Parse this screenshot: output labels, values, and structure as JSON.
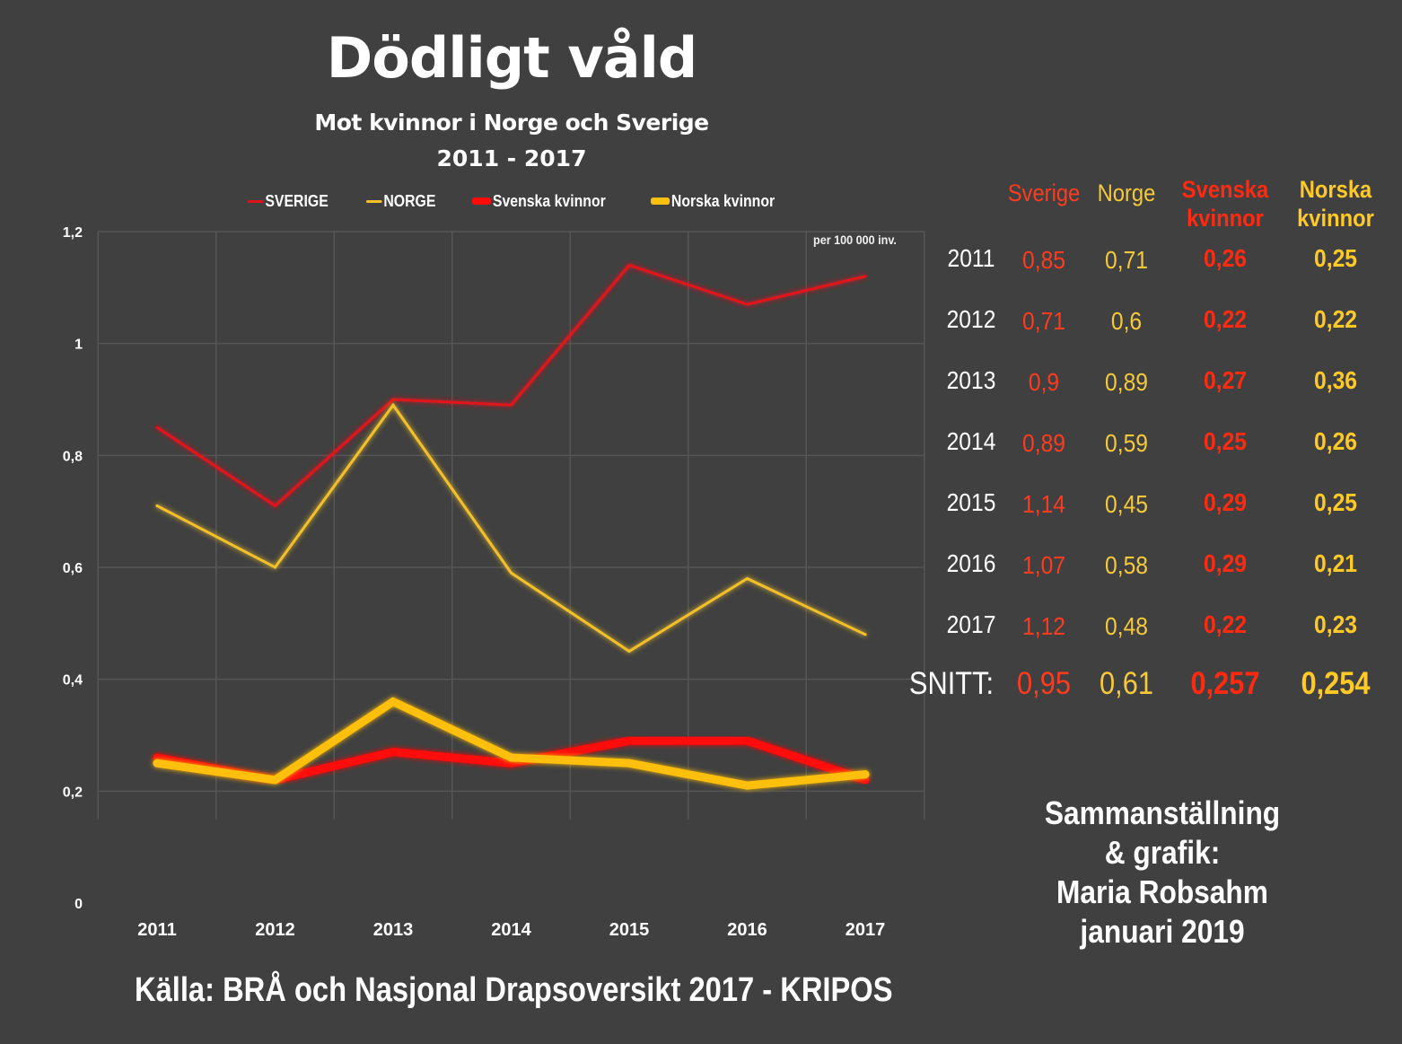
{
  "header": {
    "title": "Dödligt våld",
    "subtitle": "Mot kvinnor i Norge och Sverige",
    "date_range": "2011 - 2017"
  },
  "colors": {
    "background": "#404040",
    "sverige": "#e0121b",
    "norge": "#f2c02a",
    "svenska_kvinnor": "#ff0a0a",
    "norska_kvinnor": "#ffbf10",
    "table_sverige_text": "#ff3b1f",
    "table_norge_text": "#f6c93a",
    "table_svenska_kvinnor_text": "#ff2a10",
    "table_norska_kvinnor_text": "#ffc928",
    "gridline": "#565656"
  },
  "unit_note": "per 100 000 inv.",
  "chart_data": {
    "type": "line",
    "title": "Dödligt våld",
    "subtitle": "Mot kvinnor i Norge och Sverige 2011 - 2017",
    "xlabel": "",
    "ylabel": "",
    "x": [
      "2011",
      "2012",
      "2013",
      "2014",
      "2015",
      "2016",
      "2017"
    ],
    "ylim": [
      0,
      1.2
    ],
    "yticks": [
      0,
      0.2,
      0.4,
      0.6,
      0.8,
      1,
      1.2
    ],
    "ytick_labels": [
      "0",
      "0,2",
      "0,4",
      "0,6",
      "0,8",
      "1",
      "1,2"
    ],
    "grid": true,
    "legend_position": "top",
    "annotation": "per 100 000 inv.",
    "series": [
      {
        "name": "SVERIGE",
        "key": "sverige",
        "weight": "thin",
        "values": [
          0.85,
          0.71,
          0.9,
          0.89,
          1.14,
          1.07,
          1.12
        ]
      },
      {
        "name": "NORGE",
        "key": "norge",
        "weight": "thin",
        "values": [
          0.71,
          0.6,
          0.89,
          0.59,
          0.45,
          0.58,
          0.48
        ]
      },
      {
        "name": "Svenska kvinnor",
        "key": "svenska_kvinnor",
        "weight": "thick",
        "values": [
          0.26,
          0.22,
          0.27,
          0.25,
          0.29,
          0.29,
          0.22
        ]
      },
      {
        "name": "Norska kvinnor",
        "key": "norska_kvinnor",
        "weight": "thick",
        "values": [
          0.25,
          0.22,
          0.36,
          0.26,
          0.25,
          0.21,
          0.23
        ]
      }
    ]
  },
  "table": {
    "headers": {
      "sverige": "Sverige",
      "norge": "Norge",
      "svenska_kvinnor_1": "Svenska",
      "svenska_kvinnor_2": "kvinnor",
      "norska_kvinnor_1": "Norska",
      "norska_kvinnor_2": "kvinnor"
    },
    "rows": [
      {
        "year": "2011",
        "sverige": "0,85",
        "norge": "0,71",
        "svenska_kvinnor": "0,26",
        "norska_kvinnor": "0,25"
      },
      {
        "year": "2012",
        "sverige": "0,71",
        "norge": "0,6",
        "svenska_kvinnor": "0,22",
        "norska_kvinnor": "0,22"
      },
      {
        "year": "2013",
        "sverige": "0,9",
        "norge": "0,89",
        "svenska_kvinnor": "0,27",
        "norska_kvinnor": "0,36"
      },
      {
        "year": "2014",
        "sverige": "0,89",
        "norge": "0,59",
        "svenska_kvinnor": "0,25",
        "norska_kvinnor": "0,26"
      },
      {
        "year": "2015",
        "sverige": "1,14",
        "norge": "0,45",
        "svenska_kvinnor": "0,29",
        "norska_kvinnor": "0,25"
      },
      {
        "year": "2016",
        "sverige": "1,07",
        "norge": "0,58",
        "svenska_kvinnor": "0,29",
        "norska_kvinnor": "0,21"
      },
      {
        "year": "2017",
        "sverige": "1,12",
        "norge": "0,48",
        "svenska_kvinnor": "0,22",
        "norska_kvinnor": "0,23"
      }
    ],
    "average": {
      "label": "SNITT:",
      "sverige": "0,95",
      "norge": "0,61",
      "svenska_kvinnor": "0,257",
      "norska_kvinnor": "0,254"
    }
  },
  "credit": {
    "line1": "Sammanställning",
    "line2": "& grafik:",
    "line3": "Maria Robsahm",
    "line4": "januari 2019"
  },
  "source": "Källa: BRÅ och Nasjonal Drapsoversikt 2017 - KRIPOS"
}
